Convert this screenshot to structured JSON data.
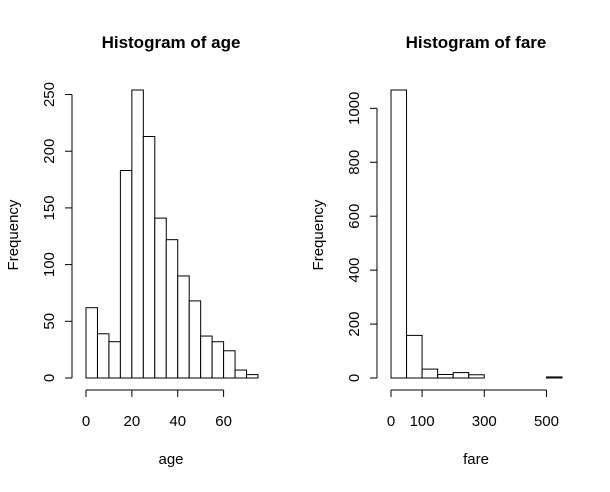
{
  "chart_data": [
    {
      "type": "bar",
      "title": "Histogram of age",
      "xlabel": "age",
      "ylabel": "Frequency",
      "bin_edges": [
        0,
        5,
        10,
        15,
        20,
        25,
        30,
        35,
        40,
        45,
        50,
        55,
        60,
        65,
        70,
        75
      ],
      "values": [
        62,
        39,
        32,
        183,
        254,
        213,
        141,
        122,
        90,
        68,
        37,
        32,
        24,
        7,
        3
      ],
      "xticks": [
        0,
        20,
        40,
        60
      ],
      "xlim": [
        0,
        75
      ],
      "yticks": [
        0,
        50,
        100,
        150,
        200,
        250
      ],
      "ylim": [
        0,
        254
      ],
      "grid": false
    },
    {
      "type": "bar",
      "title": "Histogram of fare",
      "xlabel": "fare",
      "ylabel": "Frequency",
      "bin_edges": [
        0,
        50,
        100,
        150,
        200,
        250,
        300,
        350,
        400,
        450,
        500,
        550
      ],
      "values": [
        1068,
        158,
        33,
        13,
        20,
        12,
        0,
        0,
        0,
        0,
        4
      ],
      "xticks": [
        0,
        100,
        300,
        500
      ],
      "xlim": [
        0,
        550
      ],
      "yticks": [
        0,
        200,
        400,
        600,
        800,
        1000
      ],
      "ylim": [
        0,
        1068
      ],
      "grid": false
    }
  ]
}
